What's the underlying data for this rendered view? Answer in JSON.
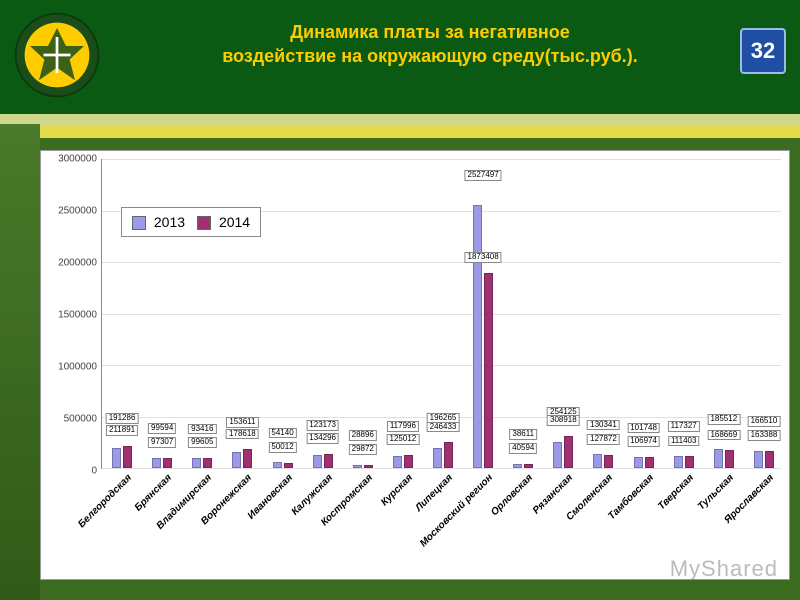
{
  "header": {
    "title_line1": "Динамика платы за негативное",
    "title_line2": "воздействие на окружающую среду(тыс.руб.).",
    "title_color": "#ffcc00",
    "title_fontsize": 18,
    "page_number": "32"
  },
  "watermark": "MyShared",
  "chart": {
    "type": "bar",
    "background_color": "#ffffff",
    "grid_color": "#e0e0e0",
    "axis_color": "#888888",
    "ylim": [
      0,
      3000000
    ],
    "ytick_step": 500000,
    "yticks": [
      "0",
      "500000",
      "1000000",
      "1500000",
      "2000000",
      "2500000",
      "3000000"
    ],
    "label_fontsize": 10,
    "datalabel_fontsize": 8,
    "series": [
      {
        "name": "2013",
        "color": "#9a9ae8"
      },
      {
        "name": "2014",
        "color": "#a03070"
      }
    ],
    "legend": {
      "position": "upper-left"
    },
    "categories": [
      {
        "label": "Белгородская",
        "v": [
          191286,
          211891
        ]
      },
      {
        "label": "Брянская",
        "v": [
          99594,
          97307
        ]
      },
      {
        "label": "Владимирская",
        "v": [
          93416,
          99605
        ]
      },
      {
        "label": "Воронежская",
        "v": [
          153611,
          178618
        ]
      },
      {
        "label": "Ивановская",
        "v": [
          54140,
          50012
        ]
      },
      {
        "label": "Калужская",
        "v": [
          123173,
          134296
        ]
      },
      {
        "label": "Костромская",
        "v": [
          28896,
          29872
        ]
      },
      {
        "label": "Курская",
        "v": [
          117996,
          125012
        ]
      },
      {
        "label": "Липецкая",
        "v": [
          196265,
          246433
        ]
      },
      {
        "label": "Московский регион",
        "v": [
          2527497,
          1873408
        ]
      },
      {
        "label": "Орловская",
        "v": [
          38611,
          40594
        ]
      },
      {
        "label": "Рязанская",
        "v": [
          254125,
          308918
        ]
      },
      {
        "label": "Смоленская",
        "v": [
          130341,
          127872
        ]
      },
      {
        "label": "Тамбовская",
        "v": [
          101748,
          106974
        ]
      },
      {
        "label": "Тверская",
        "v": [
          117327,
          111403
        ]
      },
      {
        "label": "Тульская",
        "v": [
          185512,
          168669
        ]
      },
      {
        "label": "Ярославская",
        "v": [
          166510,
          163388
        ]
      }
    ]
  },
  "logo_colors": {
    "outer": "#1a4d1a",
    "inner": "#ffcc00",
    "accent": "#ffffff"
  }
}
